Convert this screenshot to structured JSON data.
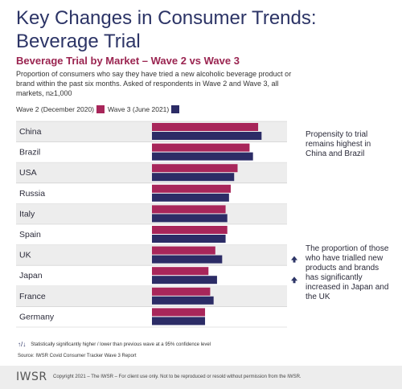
{
  "page": {
    "title": "Key Changes in Consumer Trends: Beverage Trial",
    "subtitle": "Beverage Trial by Market – Wave 2 vs Wave 3",
    "description": "Proportion of consumers who say they have tried a new alcoholic beverage product or brand within the past six months. Asked of respondents in Wave 2 and Wave 3, all markets, n≥1,000",
    "notes": [
      "Propensity to trial remains highest in China and Brazil",
      "The proportion of those who have trialled new products and brands has significantly increased in Japan and the UK"
    ],
    "footnote": "Statistically significantly higher / lower than previous wave at a 95% confidence level",
    "footnote_arrows": "↑/↓",
    "source": "Source: IWSR Covid Consumer Tracker Wave 3 Report",
    "logo": "IWSR",
    "copyright": "Copyright 2021 – The IWSR – For client use only. Not to be reproduced or resold without permission from the IWSR."
  },
  "colors": {
    "wave2": "#a8265a",
    "wave3": "#2c2c66",
    "title": "#2c3466",
    "arrow": "#2c3466",
    "row_band": "#ededed"
  },
  "chart_data": {
    "type": "bar",
    "orientation": "horizontal",
    "categories": [
      "China",
      "Brazil",
      "USA",
      "Russia",
      "Italy",
      "Spain",
      "UK",
      "Japan",
      "France",
      "Germany"
    ],
    "series": [
      {
        "name": "Wave 2 (December 2020)",
        "values": [
          62,
          57,
          50,
          46,
          43,
          44,
          37,
          33,
          34,
          31
        ]
      },
      {
        "name": "Wave 3 (June 2021)",
        "values": [
          64,
          59,
          48,
          45,
          44,
          43,
          41,
          38,
          36,
          31
        ]
      }
    ],
    "significant_increase": [
      "UK",
      "Japan"
    ],
    "legend_position": "top-left",
    "grid": false
  }
}
